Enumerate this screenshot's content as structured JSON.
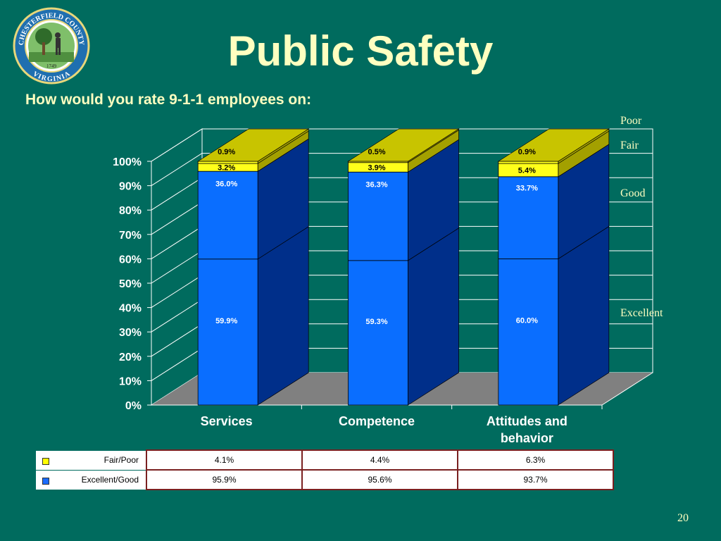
{
  "title": "Public Safety",
  "subtitle": "How would you rate 9-1-1 employees on:",
  "logo": {
    "name": "Chesterfield County Virginia seal",
    "text_top": "CHESTERFIELD COUNTY",
    "text_bottom": "VIRGINIA",
    "year": "1749"
  },
  "page_number": "20",
  "chart_data": {
    "type": "bar",
    "stacked": true,
    "three_d": true,
    "categories": [
      "Services",
      "Competence",
      "Attitudes and behavior"
    ],
    "series": [
      {
        "name": "Excellent",
        "values": [
          59.9,
          59.3,
          60.0
        ],
        "labels": [
          "59.9%",
          "59.3%",
          "60.0%"
        ],
        "color": "#0a6eff"
      },
      {
        "name": "Good",
        "values": [
          36.0,
          36.3,
          33.7
        ],
        "labels": [
          "36.0%",
          "36.3%",
          "33.7%"
        ],
        "color": "#0a6eff"
      },
      {
        "name": "Fair",
        "values": [
          3.2,
          3.9,
          5.4
        ],
        "labels": [
          "3.2%",
          "3.9%",
          "5.4%"
        ],
        "color": "#ffff1a"
      },
      {
        "name": "Poor",
        "values": [
          0.9,
          0.5,
          0.9
        ],
        "labels": [
          "0.9%",
          "0.5%",
          "0.9%"
        ],
        "color": "#ffff1a"
      }
    ],
    "ylim": [
      0,
      100
    ],
    "yticks": [
      "0%",
      "10%",
      "20%",
      "30%",
      "40%",
      "50%",
      "60%",
      "70%",
      "80%",
      "90%",
      "100%"
    ],
    "grid": true,
    "legend_placement": "right",
    "colors": {
      "front": "#0a6eff",
      "side": "#002f8a",
      "yellow_front": "#ffff1a",
      "yellow_top": "#c8c400",
      "yellow_side": "#a3a000",
      "wall": "#006b5e",
      "floor": "#808080",
      "grid": "#ffffff"
    },
    "table": {
      "rows": [
        {
          "key": "Fair/Poor",
          "values": [
            "4.1%",
            "4.4%",
            "6.3%"
          ],
          "swatch": "#ffff00"
        },
        {
          "key": "Excellent/Good",
          "values": [
            "95.9%",
            "95.6%",
            "93.7%"
          ],
          "swatch": "#1a6cff"
        }
      ]
    }
  }
}
